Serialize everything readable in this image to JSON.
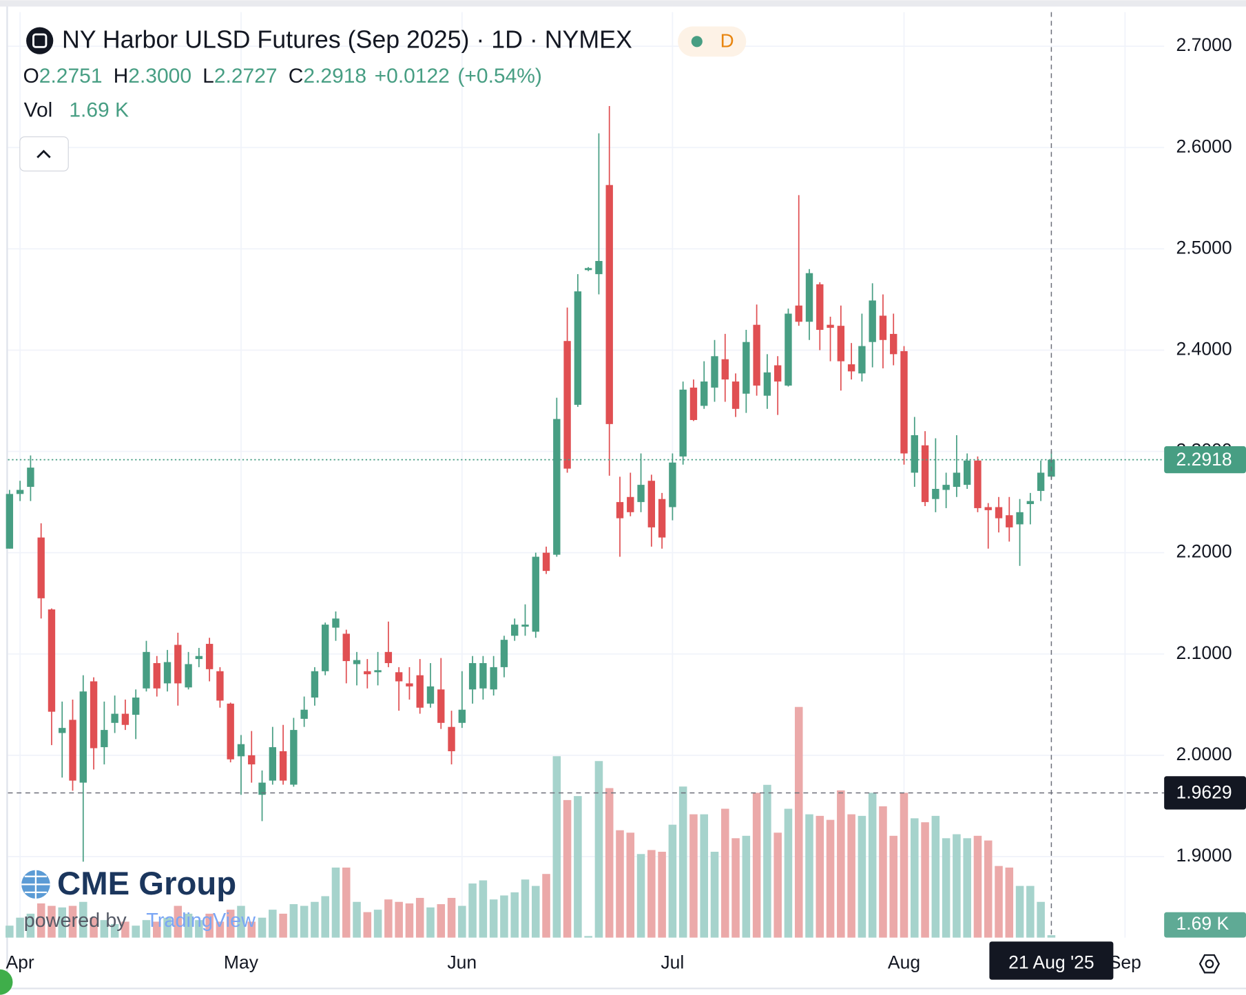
{
  "chart_data": {
    "type": "candlestick",
    "title": "NY Harbor ULSD Futures (Sep 2025) · 1D · NYMEX",
    "interval_badge": "D",
    "ohlc": [
      {
        "key": "O",
        "label": "2.2751"
      },
      {
        "key": "H",
        "label": "2.3000"
      },
      {
        "key": "L",
        "label": "2.2727"
      },
      {
        "key": "C",
        "label": "2.2918"
      }
    ],
    "change_label": "+0.0122",
    "change_pct_label": "(+0.54%)",
    "volume_title": "Vol",
    "volume_last_label": "1.69 K",
    "last_price_label": "2.2918",
    "crosshair": {
      "price": {
        "value": 1.9629,
        "label": "1.9629"
      },
      "date_label": "21 Aug '25"
    },
    "logo": "CME Group",
    "powered_by": "powered by",
    "powered_brand": "TradingView",
    "up_color": "#479e83",
    "down_color": "#e04f52",
    "volume_up_color": "#a6d3cc",
    "volume_down_color": "#eba9a9",
    "grid": true,
    "ylim": [
      1.82,
      2.7337
    ],
    "yticks": [
      {
        "value": 1.9,
        "label": "1.9000"
      },
      {
        "value": 2.0,
        "label": "2.0000"
      },
      {
        "value": 2.1,
        "label": "2.1000"
      },
      {
        "value": 2.2,
        "label": "2.2000"
      },
      {
        "value": 2.3,
        "label": "2.3000"
      },
      {
        "value": 2.4,
        "label": "2.4000"
      },
      {
        "value": 2.5,
        "label": "2.5000"
      },
      {
        "value": 2.6,
        "label": "2.6000"
      },
      {
        "value": 2.7,
        "label": "2.7000"
      }
    ],
    "volume_lim": [
      0,
      650
    ],
    "next_category": "Sep",
    "categories": [
      null,
      "Apr",
      null,
      null,
      null,
      null,
      null,
      null,
      null,
      null,
      null,
      null,
      null,
      null,
      null,
      null,
      null,
      null,
      null,
      null,
      null,
      null,
      "May",
      null,
      null,
      null,
      null,
      null,
      null,
      null,
      null,
      null,
      null,
      null,
      null,
      null,
      null,
      null,
      null,
      null,
      null,
      null,
      null,
      "Jun",
      null,
      null,
      null,
      null,
      null,
      null,
      null,
      null,
      null,
      null,
      null,
      null,
      null,
      null,
      null,
      null,
      null,
      null,
      null,
      "Jul",
      null,
      null,
      null,
      null,
      null,
      null,
      null,
      null,
      null,
      null,
      null,
      null,
      null,
      null,
      null,
      null,
      null,
      null,
      null,
      null,
      null,
      "Aug",
      null,
      null,
      null,
      null,
      null,
      null,
      null,
      null,
      null,
      null,
      null,
      null,
      null,
      null
    ],
    "open": [
      2.204,
      2.258,
      2.265,
      2.215,
      2.144,
      2.022,
      2.035,
      1.973,
      2.073,
      2.008,
      2.032,
      2.041,
      2.04,
      2.066,
      2.091,
      2.071,
      2.109,
      2.067,
      2.095,
      2.11,
      2.083,
      2.051,
      1.999,
      2.0,
      1.961,
      1.975,
      2.004,
      1.971,
      2.036,
      2.057,
      2.083,
      2.126,
      2.12,
      2.09,
      2.083,
      2.082,
      2.102,
      2.082,
      2.071,
      2.079,
      2.051,
      2.065,
      2.028,
      2.032,
      2.065,
      2.066,
      2.065,
      2.087,
      2.118,
      2.127,
      2.122,
      2.2,
      2.198,
      2.409,
      2.346,
      2.479,
      2.475,
      2.563,
      2.25,
      2.255,
      2.25,
      2.271,
      2.253,
      2.245,
      2.295,
      2.363,
      2.345,
      2.363,
      2.391,
      2.369,
      2.357,
      2.425,
      2.355,
      2.385,
      2.365,
      2.444,
      2.428,
      2.465,
      2.425,
      2.424,
      2.386,
      2.377,
      2.408,
      2.434,
      2.416,
      2.399,
      2.279,
      2.306,
      2.253,
      2.262,
      2.265,
      2.267,
      2.291,
      2.245,
      2.245,
      2.237,
      2.228,
      2.248,
      2.261,
      2.2751
    ],
    "high": [
      2.262,
      2.271,
      2.296,
      2.229,
      2.145,
      2.053,
      2.055,
      2.079,
      2.077,
      2.053,
      2.059,
      2.055,
      2.065,
      2.113,
      2.098,
      2.104,
      2.121,
      2.102,
      2.106,
      2.116,
      2.087,
      2.052,
      2.02,
      2.024,
      1.985,
      2.028,
      2.03,
      2.037,
      2.058,
      2.087,
      2.131,
      2.142,
      2.124,
      2.102,
      2.095,
      2.102,
      2.132,
      2.087,
      2.087,
      2.095,
      2.091,
      2.096,
      2.044,
      2.083,
      2.098,
      2.098,
      2.098,
      2.118,
      2.135,
      2.149,
      2.2,
      2.206,
      2.353,
      2.442,
      2.475,
      2.482,
      2.614,
      2.641,
      2.275,
      2.279,
      2.298,
      2.277,
      2.259,
      2.298,
      2.369,
      2.371,
      2.389,
      2.41,
      2.416,
      2.377,
      2.42,
      2.445,
      2.396,
      2.394,
      2.441,
      2.553,
      2.48,
      2.467,
      2.433,
      2.444,
      2.407,
      2.436,
      2.466,
      2.455,
      2.436,
      2.404,
      2.334,
      2.32,
      2.313,
      2.279,
      2.316,
      2.298,
      2.295,
      2.249,
      2.255,
      2.255,
      2.253,
      2.259,
      2.291,
      2.3
    ],
    "low": [
      2.204,
      2.251,
      2.251,
      2.135,
      2.01,
      1.978,
      1.965,
      1.895,
      1.986,
      1.991,
      2.022,
      2.025,
      2.016,
      2.063,
      2.058,
      2.063,
      2.049,
      2.065,
      2.087,
      2.073,
      2.047,
      1.993,
      1.961,
      1.973,
      1.935,
      1.971,
      1.971,
      1.969,
      2.028,
      2.049,
      2.079,
      2.113,
      2.071,
      2.069,
      2.066,
      2.069,
      2.087,
      2.044,
      2.055,
      2.041,
      2.047,
      2.026,
      1.991,
      2.027,
      2.051,
      2.055,
      2.059,
      2.077,
      2.113,
      2.118,
      2.116,
      2.179,
      2.196,
      2.279,
      2.344,
      2.478,
      2.455,
      2.276,
      2.196,
      2.236,
      2.24,
      2.206,
      2.204,
      2.232,
      2.287,
      2.33,
      2.342,
      2.349,
      2.349,
      2.334,
      2.338,
      2.355,
      2.342,
      2.336,
      2.364,
      2.424,
      2.41,
      2.4,
      2.389,
      2.36,
      2.371,
      2.369,
      2.383,
      2.382,
      2.385,
      2.287,
      2.265,
      2.246,
      2.24,
      2.244,
      2.255,
      2.263,
      2.24,
      2.204,
      2.22,
      2.211,
      2.187,
      2.228,
      2.251,
      2.2727
    ],
    "close": [
      2.258,
      2.262,
      2.284,
      2.155,
      2.043,
      2.027,
      1.975,
      2.063,
      2.007,
      2.025,
      2.041,
      2.03,
      2.057,
      2.102,
      2.066,
      2.092,
      2.071,
      2.09,
      2.098,
      2.085,
      2.054,
      1.996,
      2.011,
      1.991,
      1.973,
      2.008,
      1.975,
      2.025,
      2.045,
      2.083,
      2.129,
      2.135,
      2.093,
      2.094,
      2.08,
      2.084,
      2.091,
      2.073,
      2.068,
      2.047,
      2.068,
      2.032,
      2.004,
      2.045,
      2.091,
      2.091,
      2.087,
      2.114,
      2.129,
      2.129,
      2.196,
      2.182,
      2.332,
      2.283,
      2.458,
      2.481,
      2.488,
      2.327,
      2.234,
      2.24,
      2.267,
      2.225,
      2.215,
      2.289,
      2.361,
      2.331,
      2.369,
      2.394,
      2.371,
      2.342,
      2.408,
      2.365,
      2.378,
      2.369,
      2.436,
      2.428,
      2.476,
      2.42,
      2.422,
      2.389,
      2.379,
      2.404,
      2.449,
      2.41,
      2.396,
      2.298,
      2.316,
      2.25,
      2.263,
      2.267,
      2.279,
      2.291,
      2.244,
      2.242,
      2.234,
      2.225,
      2.24,
      2.251,
      2.279,
      2.2918
    ],
    "volume": [
      8.4,
      14.0,
      16.8,
      24.0,
      22.3,
      21.2,
      22.3,
      25.1,
      14.0,
      12.3,
      9.5,
      11.2,
      8.4,
      12.3,
      11.2,
      14.0,
      22.3,
      16.8,
      12.3,
      16.8,
      11.2,
      19.6,
      22.3,
      11.2,
      14.0,
      19.6,
      16.8,
      23.5,
      22.3,
      25.1,
      29.1,
      49.2,
      49.2,
      25.1,
      17.9,
      19.6,
      26.8,
      25.1,
      24.0,
      27.9,
      21.2,
      23.5,
      27.9,
      22.3,
      38.0,
      40.2,
      26.8,
      29.6,
      31.8,
      40.8,
      36.3,
      44.7,
      127.4,
      96.6,
      99.4,
      1.1,
      124.0,
      105.0,
      75.4,
      73.7,
      58.7,
      61.5,
      60.3,
      79.3,
      106.1,
      86.6,
      86.6,
      60.3,
      90.5,
      69.8,
      71.5,
      101.7,
      107.3,
      73.7,
      90.5,
      162.0,
      86.6,
      85.5,
      82.7,
      103.4,
      86.6,
      85.5,
      101.7,
      92.2,
      71.5,
      101.7,
      83.8,
      81.0,
      85.5,
      69.8,
      72.6,
      69.8,
      71.5,
      68.2,
      50.3,
      49.2,
      36.3,
      36.3,
      25.1,
      1.69
    ]
  }
}
